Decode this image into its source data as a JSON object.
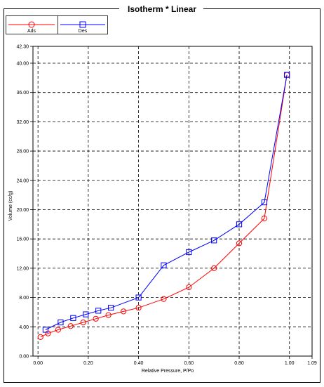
{
  "window": {
    "title": "Isotherm *  Linear"
  },
  "legend": [
    {
      "label": "Ads",
      "color": "#ff0000",
      "marker": "circle"
    },
    {
      "label": "Des",
      "color": "#0000ff",
      "marker": "square"
    }
  ],
  "chart_data": {
    "type": "scatter",
    "title": "Isotherm *  Linear",
    "xlabel": "Relative Pressure, P/Po",
    "ylabel": "Volume (cc/g)",
    "xlim": [
      -0.02,
      1.09
    ],
    "ylim": [
      0.0,
      42.3
    ],
    "xticks": [
      0.0,
      0.2,
      0.4,
      0.6,
      0.8,
      1.0,
      1.09
    ],
    "xtick_labels": [
      "0.00",
      "0.20",
      "0.40",
      "0.60",
      "0.80",
      "1.00",
      "1.09"
    ],
    "yticks": [
      0.0,
      4.0,
      8.0,
      12.0,
      16.0,
      20.0,
      24.0,
      28.0,
      32.0,
      36.0,
      40.0,
      42.3
    ],
    "ytick_labels": [
      "0.00",
      "4.00",
      "8.00",
      "12.00",
      "16.00",
      "20.00",
      "24.00",
      "28.00",
      "32.00",
      "36.00",
      "40.00",
      "42.30"
    ],
    "grid": true,
    "legend_position": "top-left",
    "series": [
      {
        "name": "Ads",
        "color": "#ff0000",
        "marker": "circle",
        "x": [
          0.01,
          0.04,
          0.08,
          0.13,
          0.18,
          0.23,
          0.28,
          0.34,
          0.4,
          0.5,
          0.6,
          0.7,
          0.8,
          0.9,
          0.99
        ],
        "y": [
          2.6,
          3.1,
          3.6,
          4.1,
          4.6,
          5.1,
          5.6,
          6.1,
          6.6,
          7.8,
          9.4,
          12.0,
          15.4,
          18.8,
          38.4
        ]
      },
      {
        "name": "Des",
        "color": "#0000ff",
        "marker": "square",
        "x": [
          0.99,
          0.9,
          0.8,
          0.7,
          0.6,
          0.5,
          0.4,
          0.29,
          0.24,
          0.19,
          0.14,
          0.09,
          0.03
        ],
        "y": [
          38.4,
          21.0,
          18.0,
          15.8,
          14.2,
          12.4,
          8.0,
          6.6,
          6.2,
          5.7,
          5.2,
          4.6,
          3.6
        ]
      }
    ]
  }
}
